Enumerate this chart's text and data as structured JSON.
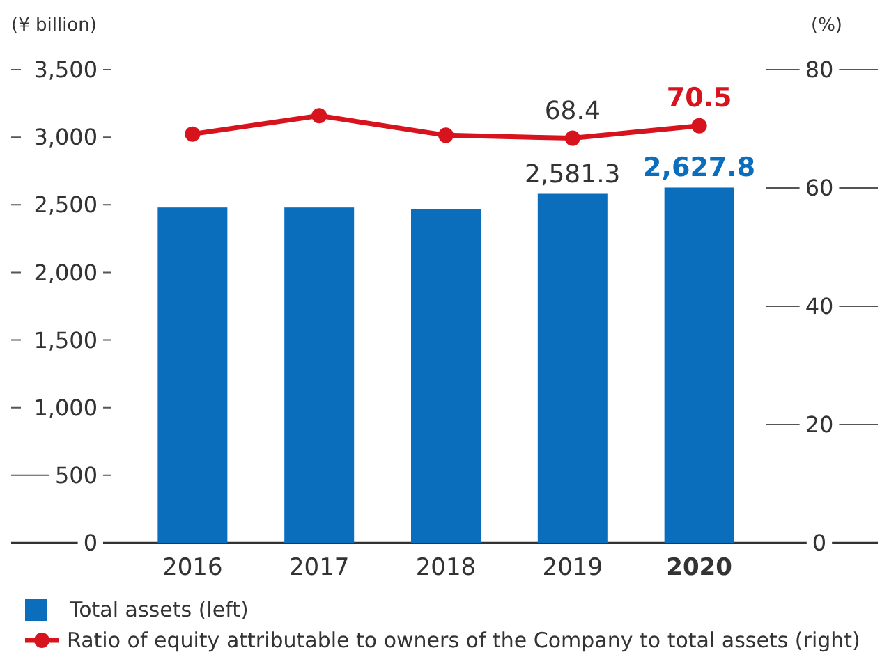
{
  "chart_data": {
    "type": "bar",
    "ylabel": "(¥ billion)",
    "y2label": "(%)",
    "categories": [
      "2016",
      "2017",
      "2018",
      "2019",
      "2020"
    ],
    "series": [
      {
        "name": "Total assets (left)",
        "color": "#0a6ebd",
        "values": [
          2480,
          2480,
          2470,
          2581.3,
          2627.8
        ],
        "value_labels": [
          null,
          null,
          null,
          "2,581.3",
          "2,627.8"
        ]
      },
      {
        "name": "Ratio of equity attributable to owners of the Company to total assets (right)",
        "type": "line",
        "axis": "y2",
        "color": "#d7141e",
        "values": [
          69.1,
          72.2,
          68.9,
          68.4,
          70.5
        ],
        "value_labels": [
          null,
          null,
          null,
          "68.4",
          "70.5"
        ]
      }
    ],
    "ylim": [
      0,
      3500
    ],
    "yticks": [
      0,
      {
        "value": 500,
        "label": "500"
      },
      {
        "value": 1000,
        "label": "1,000"
      },
      {
        "value": 1500,
        "label": "1,500"
      },
      {
        "value": 2000,
        "label": "2,000"
      },
      {
        "value": 2500,
        "label": "2,500"
      },
      {
        "value": 3000,
        "label": "3,000"
      },
      {
        "value": 3500,
        "label": "3,500"
      }
    ],
    "y2lim": [
      0,
      80
    ],
    "y2ticks": [
      0,
      20,
      40,
      60,
      80
    ],
    "marker": "circle",
    "legend": "bottom"
  }
}
